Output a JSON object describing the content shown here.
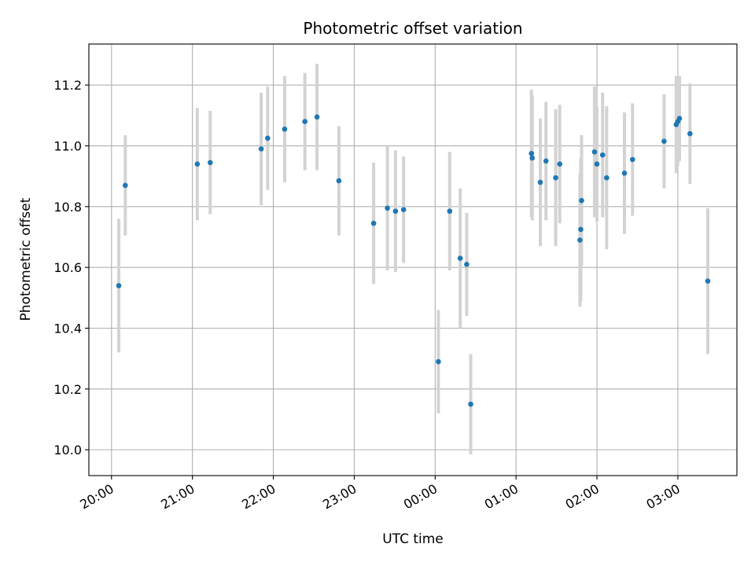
{
  "chart_data": {
    "type": "scatter",
    "title": "Photometric offset variation",
    "xlabel": "UTC time",
    "ylabel": "Photometric offset",
    "x_unit": "hours_utc_starting_20:00",
    "xlim": [
      -0.28,
      7.73
    ],
    "ylim": [
      9.915,
      11.335
    ],
    "x_ticks": [
      0,
      1,
      2,
      3,
      4,
      5,
      6,
      7
    ],
    "x_tick_labels": [
      "20:00",
      "21:00",
      "22:00",
      "23:00",
      "00:00",
      "01:00",
      "02:00",
      "03:00"
    ],
    "y_ticks": [
      10.0,
      10.2,
      10.4,
      10.6,
      10.8,
      11.0,
      11.2
    ],
    "y_tick_labels": [
      "10.0",
      "10.2",
      "10.4",
      "10.6",
      "10.8",
      "11.0",
      "11.2"
    ],
    "grid": true,
    "colors": {
      "points": "#1f77b4",
      "errorbars": "#d3d3d3",
      "grid": "#b0b0b0"
    },
    "points": [
      {
        "x": 0.09,
        "y": 10.54,
        "err": 0.22
      },
      {
        "x": 0.17,
        "y": 10.87,
        "err": 0.165
      },
      {
        "x": 1.06,
        "y": 10.94,
        "err": 0.185
      },
      {
        "x": 1.22,
        "y": 10.945,
        "err": 0.17
      },
      {
        "x": 1.85,
        "y": 10.99,
        "err": 0.185
      },
      {
        "x": 1.93,
        "y": 11.025,
        "err": 0.17
      },
      {
        "x": 2.14,
        "y": 11.055,
        "err": 0.175
      },
      {
        "x": 2.39,
        "y": 11.08,
        "err": 0.16
      },
      {
        "x": 2.54,
        "y": 11.095,
        "err": 0.175
      },
      {
        "x": 2.81,
        "y": 10.885,
        "err": 0.18
      },
      {
        "x": 3.24,
        "y": 10.745,
        "err": 0.2
      },
      {
        "x": 3.41,
        "y": 10.795,
        "err": 0.205
      },
      {
        "x": 3.51,
        "y": 10.785,
        "err": 0.2
      },
      {
        "x": 3.61,
        "y": 10.79,
        "err": 0.175
      },
      {
        "x": 4.04,
        "y": 10.29,
        "err": 0.17
      },
      {
        "x": 4.18,
        "y": 10.785,
        "err": 0.195
      },
      {
        "x": 4.31,
        "y": 10.63,
        "err": 0.23
      },
      {
        "x": 4.39,
        "y": 10.61,
        "err": 0.17
      },
      {
        "x": 4.44,
        "y": 10.15,
        "err": 0.165
      },
      {
        "x": 5.19,
        "y": 10.975,
        "err": 0.21
      },
      {
        "x": 5.2,
        "y": 10.96,
        "err": 0.205
      },
      {
        "x": 5.3,
        "y": 10.88,
        "err": 0.21
      },
      {
        "x": 5.37,
        "y": 10.95,
        "err": 0.195
      },
      {
        "x": 5.49,
        "y": 10.895,
        "err": 0.225
      },
      {
        "x": 5.54,
        "y": 10.94,
        "err": 0.195
      },
      {
        "x": 5.79,
        "y": 10.69,
        "err": 0.22
      },
      {
        "x": 5.8,
        "y": 10.725,
        "err": 0.235
      },
      {
        "x": 5.81,
        "y": 10.82,
        "err": 0.215
      },
      {
        "x": 5.97,
        "y": 10.98,
        "err": 0.215
      },
      {
        "x": 6.0,
        "y": 10.94,
        "err": 0.19
      },
      {
        "x": 6.07,
        "y": 10.97,
        "err": 0.205
      },
      {
        "x": 6.12,
        "y": 10.895,
        "err": 0.235
      },
      {
        "x": 6.34,
        "y": 10.91,
        "err": 0.2
      },
      {
        "x": 6.44,
        "y": 10.955,
        "err": 0.185
      },
      {
        "x": 6.83,
        "y": 11.015,
        "err": 0.155
      },
      {
        "x": 6.98,
        "y": 11.07,
        "err": 0.16
      },
      {
        "x": 7.0,
        "y": 11.08,
        "err": 0.145
      },
      {
        "x": 7.02,
        "y": 11.09,
        "err": 0.14
      },
      {
        "x": 7.15,
        "y": 11.04,
        "err": 0.165
      },
      {
        "x": 7.37,
        "y": 10.555,
        "err": 0.24
      }
    ]
  }
}
